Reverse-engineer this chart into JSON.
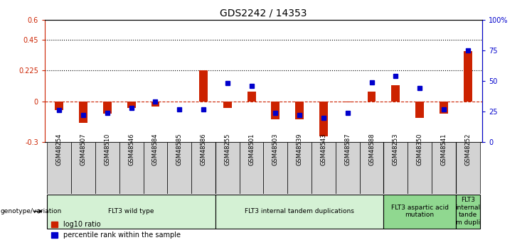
{
  "title": "GDS2242 / 14353",
  "samples": [
    "GSM48254",
    "GSM48507",
    "GSM48510",
    "GSM48546",
    "GSM48584",
    "GSM48585",
    "GSM48586",
    "GSM48255",
    "GSM48501",
    "GSM48503",
    "GSM48539",
    "GSM48543",
    "GSM48587",
    "GSM48588",
    "GSM48253",
    "GSM48350",
    "GSM48541",
    "GSM48252"
  ],
  "log10_ratio": [
    -0.065,
    -0.16,
    -0.09,
    -0.05,
    -0.04,
    0.0,
    0.23,
    -0.05,
    0.07,
    -0.13,
    -0.13,
    -0.26,
    -0.005,
    0.07,
    0.12,
    -0.12,
    -0.09,
    0.37
  ],
  "percentile_rank": [
    26,
    22,
    24,
    28,
    33,
    27,
    27,
    48,
    46,
    24,
    22,
    20,
    24,
    49,
    54,
    44,
    27,
    75
  ],
  "groups": [
    {
      "label": "FLT3 wild type",
      "start": 0,
      "end": 6,
      "color": "#d4f1d4"
    },
    {
      "label": "FLT3 internal tandem duplications",
      "start": 7,
      "end": 13,
      "color": "#d4f1d4"
    },
    {
      "label": "FLT3 aspartic acid\nmutation",
      "start": 14,
      "end": 16,
      "color": "#90d890"
    },
    {
      "label": "FLT3\ninternal\ntande\nm dupli",
      "start": 17,
      "end": 17,
      "color": "#90d890"
    }
  ],
  "group_separators": [
    6.5,
    13.5,
    16.5
  ],
  "ylim_left": [
    -0.3,
    0.6
  ],
  "ylim_right": [
    0,
    100
  ],
  "hlines": [
    0.45,
    0.225
  ],
  "bar_color_red": "#cc2200",
  "bar_color_blue": "#0000cc",
  "dashed_zero_color": "#cc2200",
  "left_yticks": [
    -0.3,
    0.0,
    0.225,
    0.45,
    0.6
  ],
  "left_yticklabels": [
    "-0.3",
    "0",
    "0.225",
    "0.45",
    "0.6"
  ],
  "right_yticks": [
    0,
    25,
    50,
    75,
    100
  ],
  "right_yticklabels": [
    "0",
    "25",
    "50",
    "75",
    "100%"
  ],
  "bar_width": 0.35
}
